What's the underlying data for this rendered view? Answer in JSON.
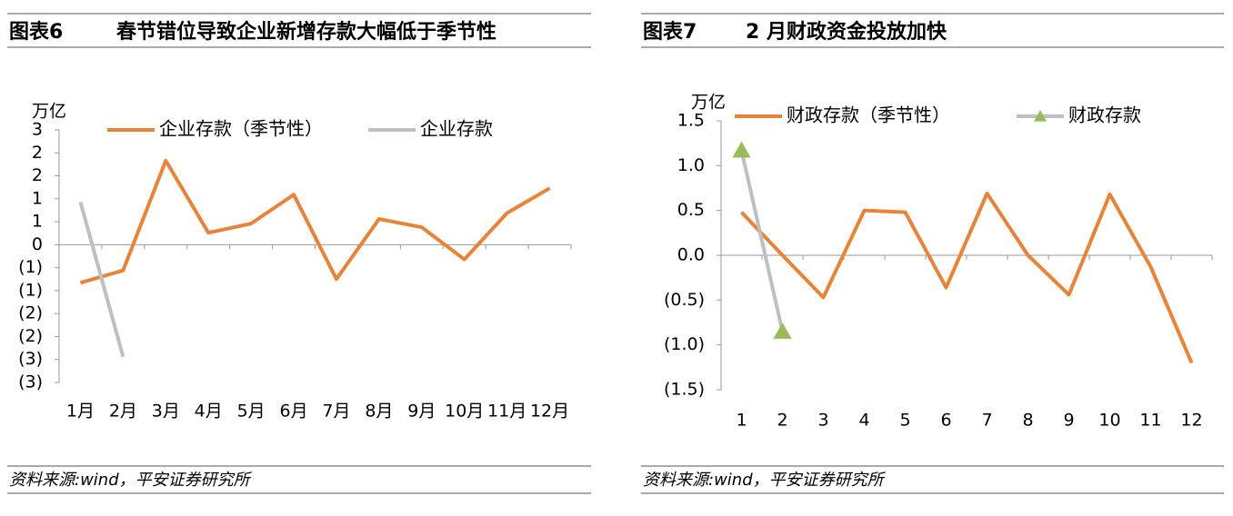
{
  "chart_data": [
    {
      "type": "line",
      "figure_label": "图表6",
      "title": "春节错位导致企业新增存款大幅低于季节性",
      "y_label": "万亿",
      "source": "资料来源:wind，平安证券研究所",
      "categories": [
        "1月",
        "2月",
        "3月",
        "4月",
        "5月",
        "6月",
        "7月",
        "8月",
        "9月",
        "10月",
        "11月",
        "12月"
      ],
      "series": [
        {
          "name": "企业存款（季节性）",
          "color": "#E8833A",
          "values": [
            -0.83,
            -0.56,
            1.83,
            0.26,
            0.46,
            1.09,
            -0.75,
            0.56,
            0.38,
            -0.32,
            0.69,
            1.23
          ]
        },
        {
          "name": "企业存款",
          "color": "#BFBFBF",
          "values": [
            0.93,
            -2.44,
            null,
            null,
            null,
            null,
            null,
            null,
            null,
            null,
            null,
            null
          ]
        }
      ],
      "ylim": [
        -3,
        2.5
      ],
      "yticks": [
        {
          "value": 2.5,
          "label": "3"
        },
        {
          "value": 2,
          "label": "2"
        },
        {
          "value": 1.5,
          "label": "2"
        },
        {
          "value": 1,
          "label": "1"
        },
        {
          "value": 0.5,
          "label": "1"
        },
        0,
        {
          "value": -0.5,
          "label": "(1)"
        },
        {
          "value": -1,
          "label": "(1)"
        },
        {
          "value": -1.5,
          "label": "(2)"
        },
        {
          "value": -2,
          "label": "(2)"
        },
        {
          "value": -2.5,
          "label": "(3)"
        },
        {
          "value": -3,
          "label": "(3)"
        }
      ],
      "negative_tick_color": "#C00000",
      "grid": false
    },
    {
      "type": "line",
      "figure_label": "图表7",
      "title": "2 月财政资金投放加快",
      "y_label": "万亿",
      "source": "资料来源:wind，平安证券研究所",
      "categories": [
        "1",
        "2",
        "3",
        "4",
        "5",
        "6",
        "7",
        "8",
        "9",
        "10",
        "11",
        "12"
      ],
      "series": [
        {
          "name": "财政存款（季节性）",
          "color": "#E8833A",
          "values": [
            0.48,
            0.0,
            -0.47,
            0.5,
            0.48,
            -0.36,
            0.69,
            0.0,
            -0.44,
            0.68,
            -0.13,
            -1.2
          ]
        },
        {
          "name": "财政存款",
          "color": "#BFBFBF",
          "marker": "triangle",
          "marker_color": "#9BBB59",
          "values": [
            1.17,
            -0.85,
            null,
            null,
            null,
            null,
            null,
            null,
            null,
            null,
            null,
            null
          ]
        }
      ],
      "ylim": [
        -1.5,
        1.5
      ],
      "yticks": [
        1.5,
        {
          "value": 1,
          "label": "1.0"
        },
        0.5,
        {
          "value": 0,
          "label": "0.0"
        },
        {
          "value": -0.5,
          "label": "(0.5)"
        },
        {
          "value": -1,
          "label": "(1.0)"
        },
        {
          "value": -1.5,
          "label": "(1.5)"
        }
      ],
      "negative_tick_color": "#C00000",
      "grid": false
    }
  ]
}
